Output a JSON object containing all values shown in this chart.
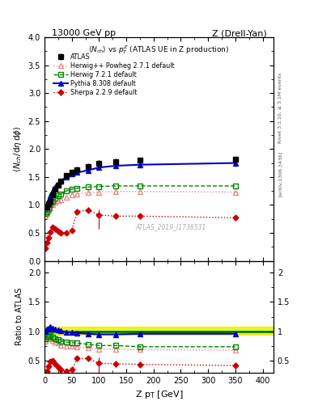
{
  "title_left": "13000 GeV pp",
  "title_right": "Z (Drell-Yan)",
  "inner_title": "<N_{ch}> vs p_{T}^{Z} (ATLAS UE in Z production)",
  "ylabel_main": "<N_{ch}/d\\eta d\\phi>",
  "ylabel_ratio": "Ratio to ATLAS",
  "xlabel": "Z p_{T} [GeV]",
  "right_label_top": "Rivet 3.1.10, ≥ 3.1M events",
  "right_label_bot": "[arXiv:1306.3436]",
  "watermark": "ATLAS_2019_I1736531",
  "atlas_x": [
    2,
    4,
    7,
    10,
    15,
    20,
    25,
    30,
    40,
    50,
    60,
    80,
    100,
    130,
    175,
    350
  ],
  "atlas_y": [
    0.97,
    0.96,
    1.02,
    1.07,
    1.18,
    1.28,
    1.36,
    1.42,
    1.52,
    1.58,
    1.63,
    1.69,
    1.75,
    1.78,
    1.8,
    1.82
  ],
  "atlas_yerr": [
    0.04,
    0.04,
    0.04,
    0.04,
    0.04,
    0.04,
    0.04,
    0.04,
    0.04,
    0.04,
    0.05,
    0.05,
    0.05,
    0.05,
    0.05,
    0.06
  ],
  "herwig_pp_x": [
    2,
    4,
    7,
    10,
    15,
    20,
    25,
    30,
    40,
    50,
    60,
    80,
    100,
    130,
    175,
    350
  ],
  "herwig_pp_y": [
    0.81,
    0.85,
    0.9,
    0.95,
    1.0,
    1.05,
    1.08,
    1.1,
    1.14,
    1.18,
    1.2,
    1.22,
    1.23,
    1.24,
    1.24,
    1.23
  ],
  "herwig721_x": [
    2,
    4,
    7,
    10,
    15,
    20,
    25,
    30,
    40,
    50,
    60,
    80,
    100,
    130,
    175,
    350
  ],
  "herwig721_y": [
    0.84,
    0.88,
    0.94,
    1.0,
    1.06,
    1.12,
    1.17,
    1.2,
    1.25,
    1.28,
    1.3,
    1.32,
    1.33,
    1.34,
    1.34,
    1.34
  ],
  "pythia_x": [
    2,
    4,
    7,
    10,
    15,
    20,
    25,
    30,
    40,
    50,
    60,
    80,
    100,
    130,
    175,
    350
  ],
  "pythia_y": [
    0.97,
    1.0,
    1.08,
    1.16,
    1.25,
    1.33,
    1.38,
    1.43,
    1.5,
    1.55,
    1.58,
    1.62,
    1.67,
    1.7,
    1.72,
    1.75
  ],
  "sherpa_x": [
    2,
    4,
    7,
    10,
    15,
    20,
    25,
    30,
    40,
    50,
    60,
    80,
    100,
    130,
    175,
    350
  ],
  "sherpa_y": [
    0.22,
    0.32,
    0.42,
    0.52,
    0.6,
    0.57,
    0.53,
    0.5,
    0.5,
    0.55,
    0.88,
    0.91,
    0.82,
    0.8,
    0.8,
    0.77
  ],
  "sherpa_yerr_lo": [
    0.05,
    0.04,
    0.04,
    0.04,
    0.04,
    0.04,
    0.04,
    0.04,
    0.04,
    0.04,
    0.05,
    0.05,
    0.25,
    0.05,
    0.05,
    0.05
  ],
  "sherpa_yerr_hi": [
    0.05,
    0.04,
    0.04,
    0.04,
    0.04,
    0.04,
    0.04,
    0.04,
    0.04,
    0.04,
    0.05,
    0.05,
    0.1,
    0.05,
    0.05,
    0.05
  ],
  "ratio_herwig_pp_y": [
    0.83,
    0.88,
    0.88,
    0.89,
    0.85,
    0.82,
    0.8,
    0.77,
    0.75,
    0.75,
    0.74,
    0.72,
    0.7,
    0.7,
    0.69,
    0.68
  ],
  "ratio_herwig721_y": [
    0.87,
    0.92,
    0.92,
    0.93,
    0.9,
    0.87,
    0.86,
    0.84,
    0.82,
    0.81,
    0.8,
    0.78,
    0.76,
    0.76,
    0.74,
    0.74
  ],
  "ratio_pythia_y": [
    1.0,
    1.04,
    1.06,
    1.08,
    1.06,
    1.04,
    1.02,
    1.01,
    0.99,
    0.98,
    0.97,
    0.96,
    0.95,
    0.95,
    0.96,
    0.96
  ],
  "ratio_sherpa_y": [
    0.23,
    0.33,
    0.41,
    0.49,
    0.51,
    0.45,
    0.39,
    0.35,
    0.33,
    0.35,
    0.54,
    0.54,
    0.46,
    0.45,
    0.44,
    0.42
  ],
  "ratio_sherpa_yerr_lo": [
    0.05,
    0.04,
    0.04,
    0.04,
    0.04,
    0.04,
    0.04,
    0.04,
    0.04,
    0.04,
    0.05,
    0.05,
    0.25,
    0.05,
    0.05,
    0.05
  ],
  "ratio_sherpa_yerr_hi": [
    0.05,
    0.04,
    0.04,
    0.04,
    0.04,
    0.04,
    0.04,
    0.04,
    0.04,
    0.04,
    0.05,
    0.05,
    0.1,
    0.05,
    0.05,
    0.05
  ],
  "atlas_band_lo": 0.95,
  "atlas_band_hi": 1.08,
  "atlas_green_lo": 0.985,
  "atlas_green_hi": 1.015,
  "xlim": [
    0,
    420
  ],
  "ylim_main": [
    0.0,
    4.0
  ],
  "ylim_ratio": [
    0.3,
    2.2
  ],
  "color_atlas": "#000000",
  "color_herwig_pp": "#ee8888",
  "color_herwig721": "#008800",
  "color_pythia": "#0000cc",
  "color_sherpa": "#cc0000",
  "color_band_yellow": "#eeee00",
  "color_band_green": "#00bb00"
}
